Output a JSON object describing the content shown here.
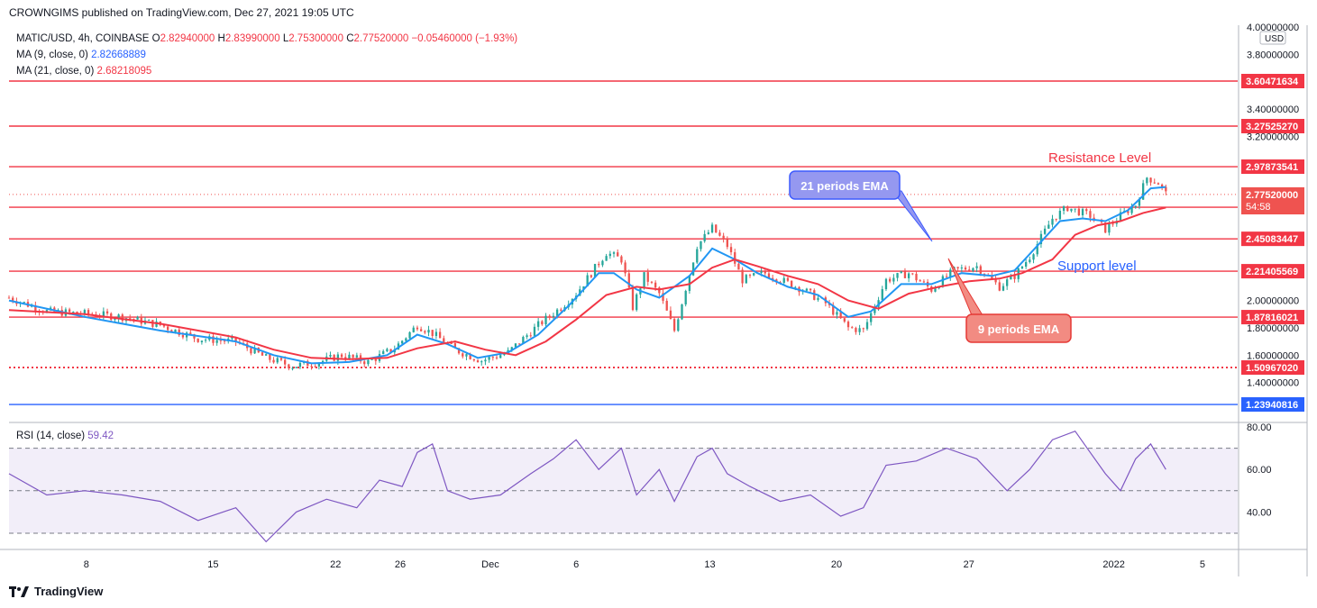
{
  "header": {
    "published": "CROWNGIMS published on TradingView.com, Dec 27, 2021 19:05 UTC"
  },
  "legend": {
    "symbol": "MATIC/USD, 4h, COINBASE",
    "ohlc": [
      {
        "k": "O",
        "v": "2.82940000"
      },
      {
        "k": "H",
        "v": "2.83990000"
      },
      {
        "k": "L",
        "v": "2.75300000"
      },
      {
        "k": "C",
        "v": "2.77520000"
      }
    ],
    "change": "−0.05460000 (−1.93%)",
    "ma9_label": "MA (9, close, 0)",
    "ma9_value": "2.82668889",
    "ma21_label": "MA (21, close, 0)",
    "ma21_value": "2.68218095"
  },
  "rsi_legend": {
    "label": "RSI (14, close)",
    "value": "59.42"
  },
  "footer": {
    "brand": "TradingView"
  },
  "colors": {
    "up": "#26a69a",
    "down": "#ef5350",
    "ma9": "#2196f3",
    "ma21": "#f23645",
    "support_line": "#2962ff",
    "rsi": "#7e57c2"
  },
  "chart_data": [
    {
      "type": "candlestick",
      "title": "MATIC/USD, 4h, COINBASE",
      "currency": "USD",
      "ylim": [
        1.2,
        4.0
      ],
      "y_ticks": [
        "4.00000000",
        "3.80000000",
        "3.40000000",
        "3.20000000",
        "2.00000000",
        "1.80000000",
        "1.60000000",
        "1.40000000"
      ],
      "x_ticks": [
        "8",
        "15",
        "22",
        "26",
        "Dec",
        "6",
        "13",
        "20",
        "27",
        "2022",
        "5"
      ],
      "close_path": [
        [
          0,
          2.02
        ],
        [
          10,
          1.92
        ],
        [
          22,
          1.9
        ],
        [
          30,
          1.88
        ],
        [
          40,
          1.82
        ],
        [
          50,
          1.72
        ],
        [
          60,
          1.7
        ],
        [
          68,
          1.58
        ],
        [
          75,
          1.52
        ],
        [
          82,
          1.55
        ],
        [
          88,
          1.6
        ],
        [
          95,
          1.55
        ],
        [
          102,
          1.65
        ],
        [
          108,
          1.82
        ],
        [
          112,
          1.76
        ],
        [
          118,
          1.64
        ],
        [
          125,
          1.56
        ],
        [
          132,
          1.62
        ],
        [
          140,
          1.82
        ],
        [
          146,
          1.95
        ],
        [
          150,
          2.05
        ],
        [
          154,
          2.2
        ],
        [
          158,
          2.35
        ],
        [
          162,
          2.3
        ],
        [
          165,
          1.95
        ],
        [
          168,
          2.18
        ],
        [
          172,
          2.05
        ],
        [
          176,
          1.78
        ],
        [
          182,
          2.4
        ],
        [
          186,
          2.53
        ],
        [
          190,
          2.4
        ],
        [
          194,
          2.15
        ],
        [
          200,
          2.2
        ],
        [
          210,
          2.08
        ],
        [
          216,
          1.98
        ],
        [
          222,
          1.8
        ],
        [
          226,
          1.78
        ],
        [
          232,
          2.15
        ],
        [
          238,
          2.2
        ],
        [
          244,
          2.08
        ],
        [
          250,
          2.22
        ],
        [
          256,
          2.25
        ],
        [
          262,
          2.1
        ],
        [
          266,
          2.18
        ],
        [
          270,
          2.32
        ],
        [
          276,
          2.6
        ],
        [
          280,
          2.68
        ],
        [
          286,
          2.62
        ],
        [
          290,
          2.52
        ],
        [
          294,
          2.62
        ],
        [
          298,
          2.7
        ],
        [
          301,
          2.9
        ],
        [
          304,
          2.86
        ],
        [
          306,
          2.78
        ]
      ],
      "series": [
        {
          "name": "MA (9, close, 0)",
          "color": "#2196f3",
          "values": [
            [
              0,
              2.0
            ],
            [
              20,
              1.88
            ],
            [
              40,
              1.78
            ],
            [
              60,
              1.7
            ],
            [
              70,
              1.6
            ],
            [
              80,
              1.54
            ],
            [
              90,
              1.55
            ],
            [
              100,
              1.6
            ],
            [
              108,
              1.75
            ],
            [
              116,
              1.68
            ],
            [
              124,
              1.58
            ],
            [
              132,
              1.62
            ],
            [
              140,
              1.75
            ],
            [
              148,
              1.96
            ],
            [
              156,
              2.2
            ],
            [
              160,
              2.2
            ],
            [
              166,
              2.08
            ],
            [
              172,
              2.02
            ],
            [
              180,
              2.18
            ],
            [
              186,
              2.38
            ],
            [
              192,
              2.3
            ],
            [
              198,
              2.2
            ],
            [
              206,
              2.1
            ],
            [
              214,
              2.04
            ],
            [
              222,
              1.88
            ],
            [
              228,
              1.92
            ],
            [
              236,
              2.12
            ],
            [
              244,
              2.12
            ],
            [
              252,
              2.2
            ],
            [
              260,
              2.18
            ],
            [
              266,
              2.22
            ],
            [
              272,
              2.4
            ],
            [
              278,
              2.58
            ],
            [
              284,
              2.6
            ],
            [
              290,
              2.58
            ],
            [
              296,
              2.66
            ],
            [
              302,
              2.82
            ],
            [
              306,
              2.83
            ]
          ]
        },
        {
          "name": "MA (21, close, 0)",
          "color": "#f23645",
          "values": [
            [
              0,
              1.93
            ],
            [
              20,
              1.9
            ],
            [
              40,
              1.83
            ],
            [
              60,
              1.73
            ],
            [
              70,
              1.64
            ],
            [
              80,
              1.58
            ],
            [
              90,
              1.57
            ],
            [
              100,
              1.58
            ],
            [
              108,
              1.65
            ],
            [
              118,
              1.7
            ],
            [
              126,
              1.64
            ],
            [
              134,
              1.6
            ],
            [
              142,
              1.7
            ],
            [
              150,
              1.86
            ],
            [
              158,
              2.04
            ],
            [
              166,
              2.1
            ],
            [
              172,
              2.08
            ],
            [
              180,
              2.12
            ],
            [
              186,
              2.24
            ],
            [
              192,
              2.3
            ],
            [
              198,
              2.25
            ],
            [
              206,
              2.18
            ],
            [
              214,
              2.12
            ],
            [
              222,
              2.0
            ],
            [
              230,
              1.94
            ],
            [
              238,
              2.05
            ],
            [
              246,
              2.1
            ],
            [
              254,
              2.14
            ],
            [
              262,
              2.16
            ],
            [
              268,
              2.2
            ],
            [
              276,
              2.3
            ],
            [
              282,
              2.48
            ],
            [
              288,
              2.55
            ],
            [
              294,
              2.58
            ],
            [
              300,
              2.64
            ],
            [
              306,
              2.68
            ]
          ]
        }
      ],
      "horizontal_levels": [
        {
          "value": "3.60471634",
          "color": "#f23645"
        },
        {
          "value": "3.27525270",
          "color": "#f23645"
        },
        {
          "value": "2.97873541",
          "color": "#f23645"
        },
        {
          "value": "2.68221813",
          "color": "#f23645"
        },
        {
          "value": "2.45083447",
          "color": "#f23645"
        },
        {
          "value": "2.21405569",
          "color": "#f23645"
        },
        {
          "value": "1.87816021",
          "color": "#f23645"
        },
        {
          "value": "1.50967020",
          "color": "#f23645",
          "style": "dotted"
        },
        {
          "value": "1.23940816",
          "color": "#2962ff"
        }
      ],
      "last_price": {
        "value": "2.77520000",
        "countdown": "54:58"
      },
      "annotations": [
        "Resistance Level",
        "Support level",
        "21 periods EMA",
        "9 periods EMA"
      ]
    },
    {
      "type": "line",
      "title": "RSI (14, close)",
      "ylim": [
        25,
        80
      ],
      "y_ticks": [
        "80.00",
        "60.00",
        "40.00"
      ],
      "band": [
        30,
        70
      ],
      "values": [
        [
          0,
          58
        ],
        [
          10,
          48
        ],
        [
          20,
          50
        ],
        [
          30,
          48
        ],
        [
          40,
          45
        ],
        [
          50,
          36
        ],
        [
          60,
          42
        ],
        [
          68,
          26
        ],
        [
          76,
          40
        ],
        [
          84,
          46
        ],
        [
          92,
          42
        ],
        [
          98,
          55
        ],
        [
          104,
          52
        ],
        [
          108,
          68
        ],
        [
          112,
          72
        ],
        [
          116,
          50
        ],
        [
          122,
          46
        ],
        [
          130,
          48
        ],
        [
          138,
          58
        ],
        [
          144,
          65
        ],
        [
          150,
          74
        ],
        [
          156,
          60
        ],
        [
          162,
          70
        ],
        [
          166,
          48
        ],
        [
          172,
          60
        ],
        [
          176,
          45
        ],
        [
          182,
          66
        ],
        [
          186,
          70
        ],
        [
          190,
          58
        ],
        [
          196,
          52
        ],
        [
          204,
          45
        ],
        [
          212,
          48
        ],
        [
          220,
          38
        ],
        [
          226,
          42
        ],
        [
          232,
          62
        ],
        [
          240,
          64
        ],
        [
          248,
          70
        ],
        [
          256,
          65
        ],
        [
          264,
          50
        ],
        [
          270,
          60
        ],
        [
          276,
          74
        ],
        [
          282,
          78
        ],
        [
          286,
          68
        ],
        [
          290,
          58
        ],
        [
          294,
          50
        ],
        [
          298,
          65
        ],
        [
          302,
          72
        ],
        [
          306,
          60
        ]
      ]
    }
  ]
}
